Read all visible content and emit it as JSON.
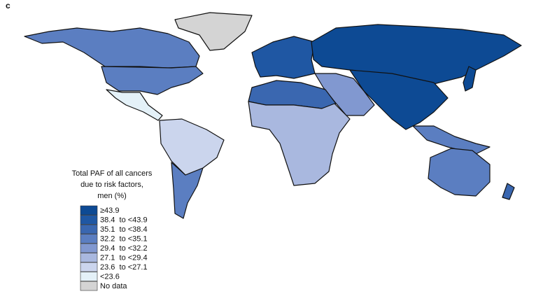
{
  "panel_label": "c",
  "legend": {
    "title_lines": [
      "Total PAF of all cancers",
      "due to risk factors,",
      "men (%)"
    ],
    "items": [
      {
        "label": "≥43.9",
        "color": "#0d4a94"
      },
      {
        "label": "38.4  to <43.9",
        "color": "#1f57a3"
      },
      {
        "label": "35.1  to <38.4",
        "color": "#3a67b0"
      },
      {
        "label": "32.2  to <35.1",
        "color": "#5b7ec1"
      },
      {
        "label": "29.4  to <32.2",
        "color": "#8198d0"
      },
      {
        "label": "27.1  to <29.4",
        "color": "#a9b8df"
      },
      {
        "label": "23.6  to <27.1",
        "color": "#cbd5ed"
      },
      {
        "label": "<23.6",
        "color": "#e4f1f8"
      },
      {
        "label": "No data",
        "color": "#d4d4d4"
      }
    ]
  }
}
